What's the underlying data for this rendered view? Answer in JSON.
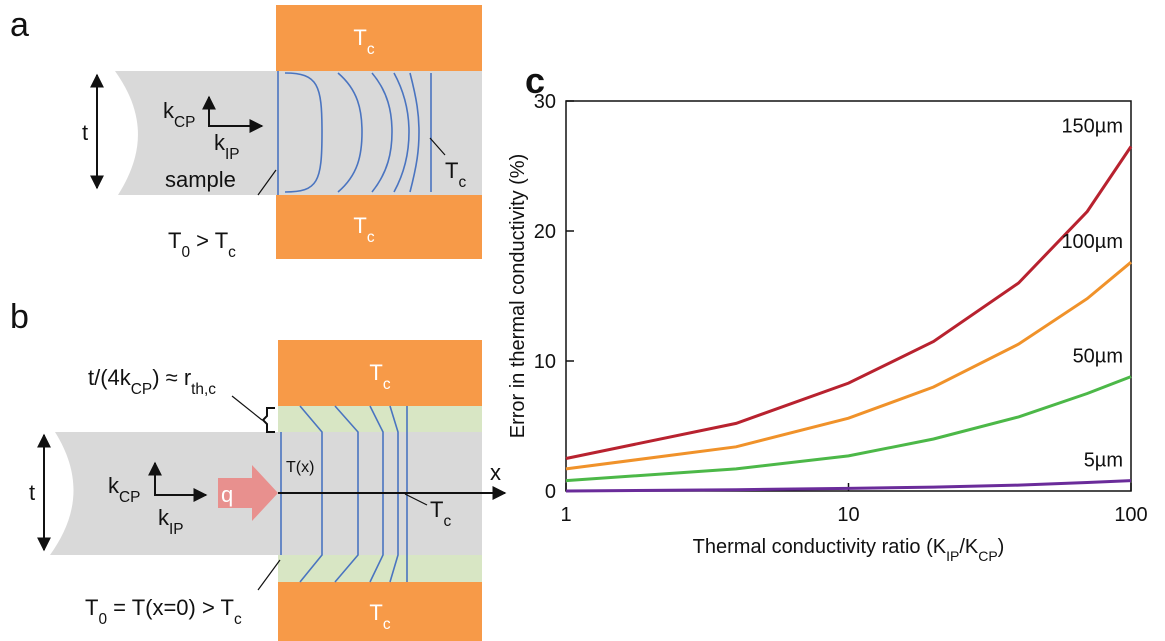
{
  "panels": {
    "a": {
      "label": "a",
      "labels": [
        [
          {
            "main": "T"
          },
          {
            "sub": "c"
          }
        ],
        [
          {
            "main": "T"
          },
          {
            "sub": "c"
          }
        ],
        [
          {
            "main": "k"
          },
          {
            "sub": "CP"
          }
        ],
        [
          {
            "main": "k"
          },
          {
            "sub": "IP"
          }
        ],
        [
          {
            "main": "t"
          }
        ],
        [
          {
            "main": "sample"
          }
        ],
        [
          {
            "main": "T"
          },
          {
            "sub": "0"
          },
          {
            "main": " > T"
          },
          {
            "sub": "c"
          }
        ],
        [
          {
            "main": "T"
          },
          {
            "sub": "c"
          }
        ]
      ]
    },
    "b": {
      "label": "b",
      "labels": [
        [
          {
            "main": "T"
          },
          {
            "sub": "c"
          }
        ],
        [
          {
            "main": "T"
          },
          {
            "sub": "c"
          }
        ],
        [
          {
            "main": "t/(4k"
          },
          {
            "sub": "CP"
          },
          {
            "main": ") ≈ r"
          },
          {
            "sub": "th,c"
          }
        ],
        [
          {
            "main": "T(x)"
          }
        ],
        [
          {
            "main": "x"
          }
        ],
        [
          {
            "main": "k"
          },
          {
            "sub": "CP"
          }
        ],
        [
          {
            "main": "k"
          },
          {
            "sub": "IP"
          }
        ],
        [
          {
            "main": "t"
          }
        ],
        [
          {
            "main": "q"
          }
        ],
        [
          {
            "main": "T"
          },
          {
            "sub": "c"
          }
        ],
        [
          {
            "main": "T"
          },
          {
            "sub": "0"
          },
          {
            "main": " = T(x=0) > T"
          },
          {
            "sub": "c"
          }
        ]
      ]
    }
  },
  "chart_data": {
    "type": "line",
    "panel_label": "c",
    "ylabel": "Error in thermal conductivity (%)",
    "xlabel": [
      {
        "main": "Thermal conductivity ratio (K"
      },
      {
        "sub": "IP"
      },
      {
        "main": "/K"
      },
      {
        "sub": "CP"
      },
      {
        "main": ")"
      }
    ],
    "x": [
      1,
      4,
      10,
      20,
      40,
      70,
      100
    ],
    "x_log": true,
    "xlim": [
      1,
      100
    ],
    "xticks": [
      1,
      10,
      100
    ],
    "ylim": [
      0,
      30
    ],
    "yticks": [
      0,
      10,
      20,
      30
    ],
    "series": [
      {
        "name": "150µm",
        "color": "#b8222f",
        "values": [
          2.5,
          5.2,
          8.3,
          11.5,
          16,
          21.5,
          26.5
        ]
      },
      {
        "name": "100µm",
        "color": "#f0922a",
        "values": [
          1.7,
          3.4,
          5.6,
          8,
          11.3,
          14.8,
          17.6
        ]
      },
      {
        "name": "50µm",
        "color": "#4cb848",
        "values": [
          0.8,
          1.7,
          2.7,
          4,
          5.7,
          7.5,
          8.8
        ]
      },
      {
        "name": "5µm",
        "color": "#6a2c9a",
        "values": [
          0,
          0.1,
          0.2,
          0.3,
          0.45,
          0.65,
          0.8
        ]
      }
    ]
  }
}
